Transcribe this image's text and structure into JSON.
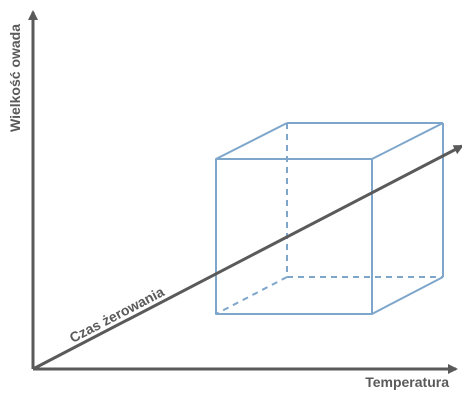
{
  "axes": {
    "y_label": "Wielkość owada",
    "x_label": "Temperatura",
    "diagonal_label": "Czas żerowania"
  },
  "colors": {
    "axis": "#5a5a5a",
    "cube": "#7ea6cb",
    "background": "#ffffff"
  }
}
